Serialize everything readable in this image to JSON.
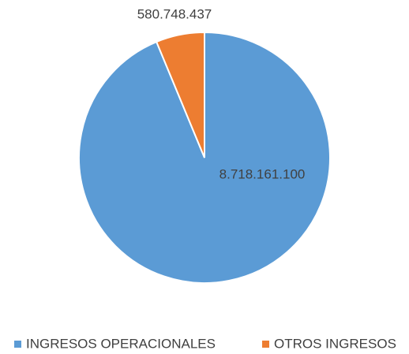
{
  "chart_data": {
    "type": "pie",
    "categories": [
      "INGRESOS OPERACIONALES",
      "OTROS INGRESOS"
    ],
    "values": [
      8718161100,
      580748437
    ],
    "value_labels": [
      "8.718.161.100",
      "580.748.437"
    ],
    "colors": [
      "#5b9bd5",
      "#ed7d31"
    ],
    "legend": "bottom"
  }
}
